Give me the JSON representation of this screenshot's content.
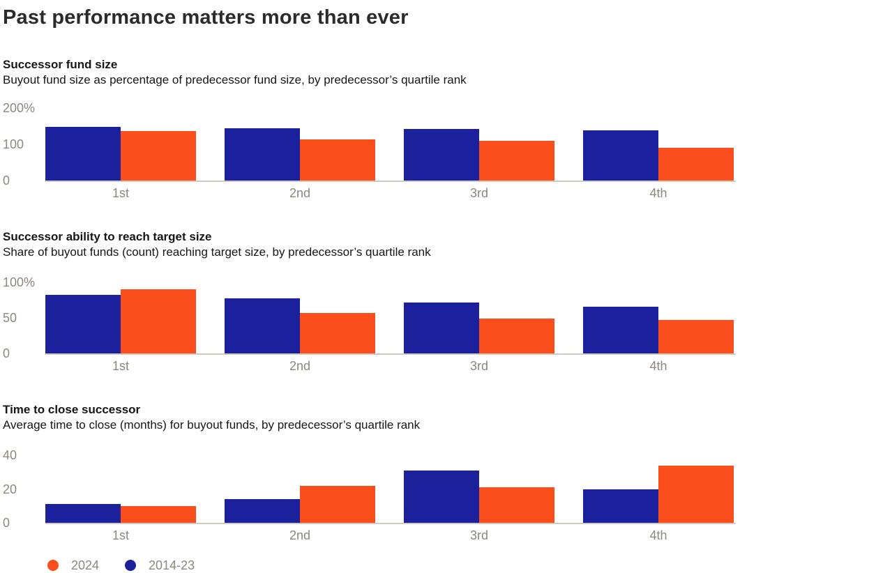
{
  "page": {
    "title": "Past performance matters more than ever"
  },
  "colors": {
    "series_2024": "#fa4f1c",
    "series_2014_23": "#1b209d",
    "axis_text": "#8e877c",
    "baseline": "#cfcbc2",
    "title_text": "#2b2b2b"
  },
  "legend": {
    "position": "bottom-left",
    "items": [
      {
        "label": "2024",
        "color": "#fa4f1c"
      },
      {
        "label": "2014-23",
        "color": "#1b209d"
      }
    ]
  },
  "chart_data": [
    {
      "type": "bar",
      "title": "Successor fund size",
      "subtitle": "Buyout fund size as percentage of predecessor fund size, by predecessor’s quartile rank",
      "categories": [
        "1st",
        "2nd",
        "3rd",
        "4th"
      ],
      "series": [
        {
          "name": "2014-23",
          "color": "#1b209d",
          "values": [
            148,
            145,
            142,
            138
          ]
        },
        {
          "name": "2024",
          "color": "#fa4f1c",
          "values": [
            137,
            114,
            110,
            90
          ]
        }
      ],
      "xlabel": "",
      "ylabel": "Buyout fund size as % of predecessor fund size",
      "ylim": [
        0,
        200
      ],
      "yticks": [
        {
          "label": "200%",
          "value": 200
        },
        {
          "label": "100",
          "value": 100
        },
        {
          "label": "0",
          "value": 0
        }
      ],
      "grid": false,
      "unit": "%"
    },
    {
      "type": "bar",
      "title": "Successor ability to reach target size",
      "subtitle": "Share of buyout funds (count) reaching target size, by predecessor’s quartile rank",
      "categories": [
        "1st",
        "2nd",
        "3rd",
        "4th"
      ],
      "series": [
        {
          "name": "2014-23",
          "color": "#1b209d",
          "values": [
            82,
            77,
            72,
            66
          ]
        },
        {
          "name": "2024",
          "color": "#fa4f1c",
          "values": [
            90,
            57,
            49,
            47
          ]
        }
      ],
      "xlabel": "",
      "ylabel": "Share of buyout funds reaching target size",
      "ylim": [
        0,
        100
      ],
      "yticks": [
        {
          "label": "100%",
          "value": 100
        },
        {
          "label": "50",
          "value": 50
        },
        {
          "label": "0",
          "value": 0
        }
      ],
      "grid": false,
      "unit": "%"
    },
    {
      "type": "bar",
      "title": "Time to close successor",
      "subtitle": "Average time to close (months) for buyout funds,  by predecessor’s quartile rank",
      "categories": [
        "1st",
        "2nd",
        "3rd",
        "4th"
      ],
      "series": [
        {
          "name": "2014-23",
          "color": "#1b209d",
          "values": [
            11,
            14,
            31,
            20
          ]
        },
        {
          "name": "2024",
          "color": "#fa4f1c",
          "values": [
            10,
            22,
            21,
            34
          ]
        }
      ],
      "xlabel": "",
      "ylabel": "Average time to close (months)",
      "ylim": [
        0,
        40
      ],
      "yticks": [
        {
          "label": "40",
          "value": 40
        },
        {
          "label": "20",
          "value": 20
        },
        {
          "label": "0",
          "value": 0
        }
      ],
      "grid": false,
      "unit": "months"
    }
  ]
}
